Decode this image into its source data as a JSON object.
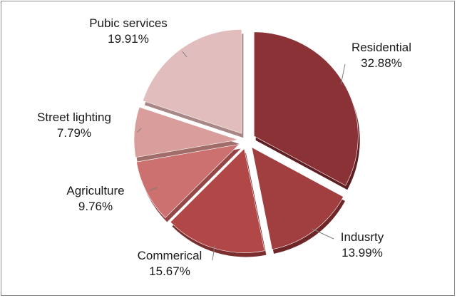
{
  "chart_data": {
    "type": "pie",
    "exploded": true,
    "start_angle_deg": 0,
    "direction": "clockwise",
    "slices": [
      {
        "label": "Residential",
        "value": 32.88,
        "value_text": "32.88%",
        "color": "#8b3236",
        "side": "#5e1e22"
      },
      {
        "label": "Indusrty",
        "value": 13.99,
        "value_text": "13.99%",
        "color": "#a13e3f",
        "side": "#6e2628"
      },
      {
        "label": "Commerical",
        "value": 15.67,
        "value_text": "15.67%",
        "color": "#b24747",
        "side": "#7a2e2e"
      },
      {
        "label": "Agriculture",
        "value": 9.76,
        "value_text": "9.76%",
        "color": "#cc7070",
        "side": "#944848"
      },
      {
        "label": "Street lighting",
        "value": 7.79,
        "value_text": "7.79%",
        "color": "#d99d9b",
        "side": "#a06d6b"
      },
      {
        "label": "Pubic services",
        "value": 19.91,
        "value_text": "19.91%",
        "color": "#e2bdbd",
        "side": "#aa8787"
      }
    ]
  }
}
